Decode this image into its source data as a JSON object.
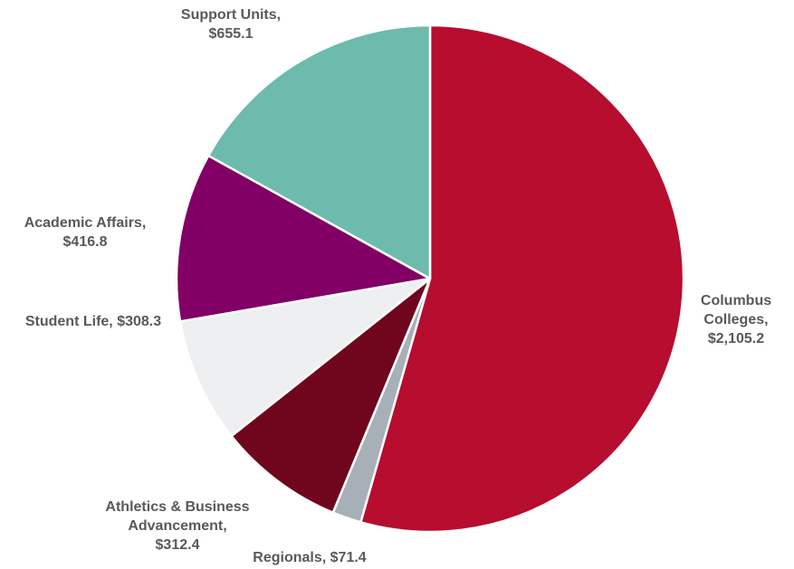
{
  "chart_data": {
    "type": "pie",
    "title": "",
    "start_angle_deg": 0,
    "direction": "clockwise",
    "slices": [
      {
        "name": "Columbus Colleges",
        "value": 2105.2,
        "color": "#B70D2F",
        "label_lines": [
          "Columbus",
          "Colleges,",
          "$2,105.2"
        ]
      },
      {
        "name": "Regionals",
        "value": 71.4,
        "color": "#A7B0B7",
        "label_lines": [
          "Regionals, $71.4"
        ]
      },
      {
        "name": "Athletics & Business Advancement",
        "value": 312.4,
        "color": "#6F061D",
        "label_lines": [
          "Athletics & Business",
          "Advancement,",
          "$312.4"
        ]
      },
      {
        "name": "Student Life",
        "value": 308.3,
        "color": "#EEEFF1",
        "label_lines": [
          "Student Life, $308.3"
        ]
      },
      {
        "name": "Academic Affairs",
        "value": 416.8,
        "color": "#820065",
        "label_lines": [
          "Academic Affairs,",
          "$416.8"
        ]
      },
      {
        "name": "Support Units",
        "value": 655.1,
        "color": "#6DBBAC",
        "label_lines": [
          "Support Units,",
          "$655.1"
        ]
      }
    ]
  }
}
